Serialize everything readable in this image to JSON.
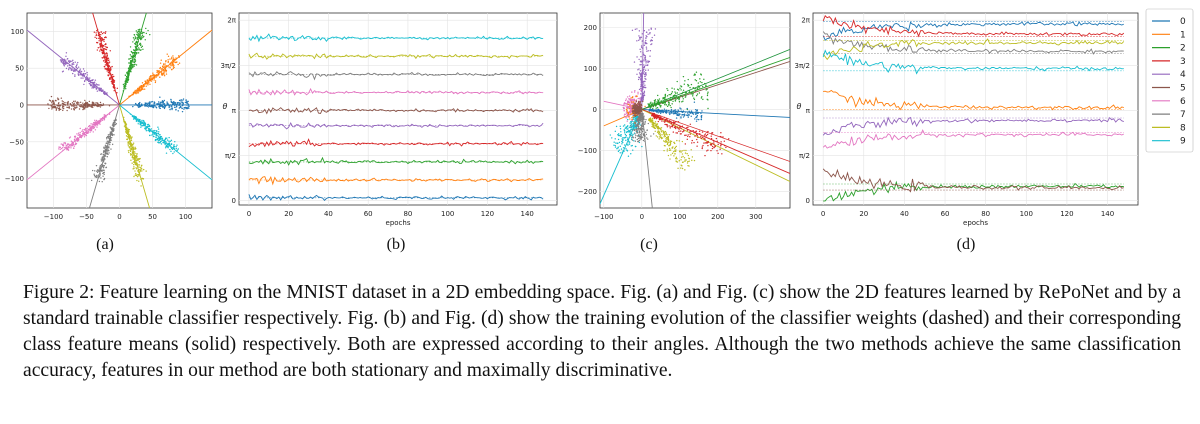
{
  "figure": {
    "panels": [
      {
        "id": "a",
        "label": "(a)"
      },
      {
        "id": "b",
        "label": "(b)"
      },
      {
        "id": "c",
        "label": "(c)"
      },
      {
        "id": "d",
        "label": "(d)"
      }
    ],
    "legend": [
      "0",
      "1",
      "2",
      "3",
      "4",
      "5",
      "6",
      "7",
      "8",
      "9"
    ],
    "class_colors": [
      "#1f77b4",
      "#ff7f0e",
      "#2ca02c",
      "#d62728",
      "#9467bd",
      "#8c564b",
      "#e377c2",
      "#7f7f7f",
      "#bcbd22",
      "#17becf"
    ],
    "caption": "Figure 2: Feature learning on the MNIST dataset in a 2D embedding space. Fig. (a) and Fig. (c) show the 2D features learned by RePoNet and by a standard trainable classifier respectively. Fig. (b) and Fig. (d) show the training evolution of the classifier weights (dashed) and their corresponding class feature means (solid) respectively. Both are expressed according to their angles. Although the two methods achieve the same classification accuracy, features in our method are both stationary and maximally discriminative."
  },
  "chart_data": [
    {
      "id": "a",
      "type": "scatter",
      "title": "",
      "xlabel": "",
      "ylabel": "",
      "xlim": [
        -140,
        140
      ],
      "ylim": [
        -140,
        125
      ],
      "xticks": [
        -100,
        -50,
        0,
        50,
        100
      ],
      "yticks": [
        -100,
        -50,
        0,
        50,
        100
      ],
      "grid": true,
      "series_angles_deg": [
        0,
        36,
        72,
        108,
        144,
        180,
        216,
        252,
        288,
        324
      ],
      "series_names": [
        "0",
        "1",
        "2",
        "3",
        "4",
        "5",
        "6",
        "7",
        "8",
        "9"
      ],
      "radius_range": [
        25,
        105
      ]
    },
    {
      "id": "b",
      "type": "line",
      "title": "",
      "xlabel": "epochs",
      "ylabel": "θ",
      "xlim": [
        -5,
        155
      ],
      "xticks": [
        0,
        20,
        40,
        60,
        80,
        100,
        120,
        140
      ],
      "ytick_labels": [
        "0",
        "π/2",
        "π",
        "3π/2",
        "2π"
      ],
      "grid": true,
      "series": [
        {
          "name": "0",
          "level": 0.1
        },
        {
          "name": "1",
          "level": 0.72
        },
        {
          "name": "2",
          "level": 1.35
        },
        {
          "name": "3",
          "level": 1.98
        },
        {
          "name": "4",
          "level": 2.61
        },
        {
          "name": "5",
          "level": 3.14
        },
        {
          "name": "6",
          "level": 3.77
        },
        {
          "name": "7",
          "level": 4.4
        },
        {
          "name": "8",
          "level": 5.03
        },
        {
          "name": "9",
          "level": 5.66
        }
      ]
    },
    {
      "id": "c",
      "type": "scatter",
      "title": "",
      "xlabel": "",
      "ylabel": "",
      "xlim": [
        -110,
        390
      ],
      "ylim": [
        -240,
        235
      ],
      "xticks": [
        -100,
        0,
        100,
        200,
        300
      ],
      "yticks": [
        -200,
        -100,
        0,
        100,
        200
      ],
      "grid": true,
      "series_names": [
        "0",
        "1",
        "2",
        "3",
        "4",
        "5",
        "6",
        "7",
        "8",
        "9"
      ]
    },
    {
      "id": "d",
      "type": "line",
      "title": "",
      "xlabel": "epochs",
      "ylabel": "θ",
      "xlim": [
        -5,
        155
      ],
      "xticks": [
        0,
        20,
        40,
        60,
        80,
        100,
        120,
        140
      ],
      "ytick_labels": [
        "0",
        "π/2",
        "π",
        "3π/2",
        "2π"
      ],
      "grid": true,
      "legend_position": "right",
      "series": [
        {
          "name": "0",
          "level": 6.15
        },
        {
          "name": "1",
          "level": 3.25
        },
        {
          "name": "2",
          "level": 0.5
        },
        {
          "name": "3",
          "level": 5.8
        },
        {
          "name": "4",
          "level": 2.8
        },
        {
          "name": "5",
          "level": 0.45
        },
        {
          "name": "6",
          "level": 2.3
        },
        {
          "name": "7",
          "level": 5.2
        },
        {
          "name": "8",
          "level": 5.5
        },
        {
          "name": "9",
          "level": 4.6
        }
      ]
    }
  ]
}
